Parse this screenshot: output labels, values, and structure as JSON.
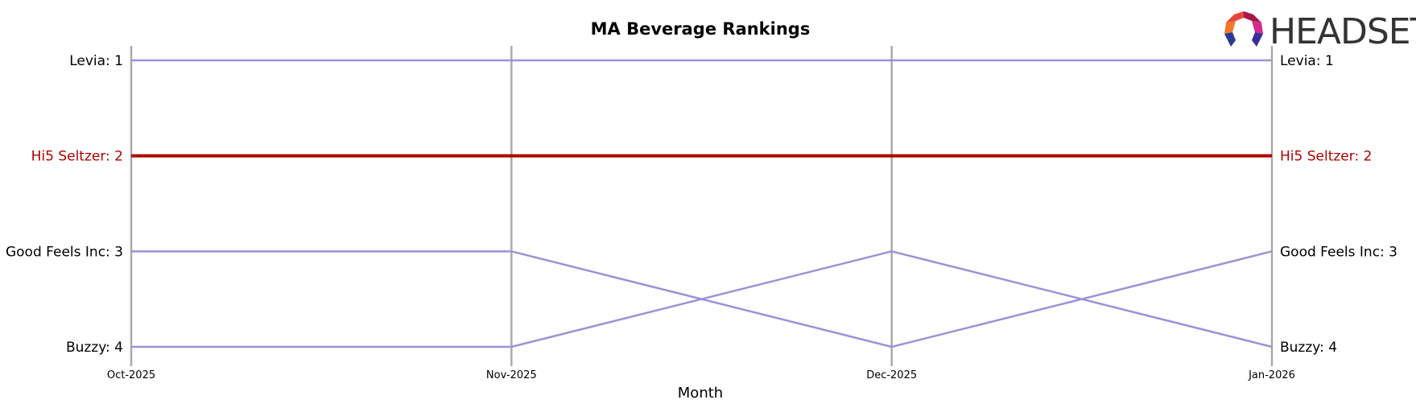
{
  "chart_data": {
    "type": "line",
    "title": "MA Beverage Rankings",
    "xlabel": "Month",
    "ylabel": "",
    "categories": [
      "Oct-2025",
      "Nov-2025",
      "Dec-2025",
      "Jan-2026"
    ],
    "y_inverted": true,
    "ylim": [
      1,
      4
    ],
    "grid": "vertical lines at each month",
    "series": [
      {
        "name": "Levia",
        "ranks": [
          1,
          1,
          1,
          1
        ],
        "color": "#9b93d9",
        "highlight": false,
        "start_label": "Levia: 1",
        "end_label": "Levia: 1"
      },
      {
        "name": "Hi5 Seltzer",
        "ranks": [
          2,
          2,
          2,
          2
        ],
        "color": "#b00000",
        "highlight": true,
        "start_label": "Hi5 Seltzer: 2",
        "end_label": "Hi5 Seltzer: 2"
      },
      {
        "name": "Good Feels Inc",
        "ranks": [
          3,
          3,
          4,
          3
        ],
        "color": "#9b93d9",
        "highlight": false,
        "start_label": "Good Feels Inc: 3",
        "end_label": "Good Feels Inc: 3"
      },
      {
        "name": "Buzzy",
        "ranks": [
          4,
          4,
          3,
          4
        ],
        "color": "#9b93d9",
        "highlight": false,
        "start_label": "Buzzy: 4",
        "end_label": "Buzzy: 4"
      }
    ]
  },
  "logo": {
    "text": "HEADSET"
  },
  "colors": {
    "gridline": "#aaaaaa",
    "highlight": "#b00000",
    "default_line": "#9b93d9"
  }
}
